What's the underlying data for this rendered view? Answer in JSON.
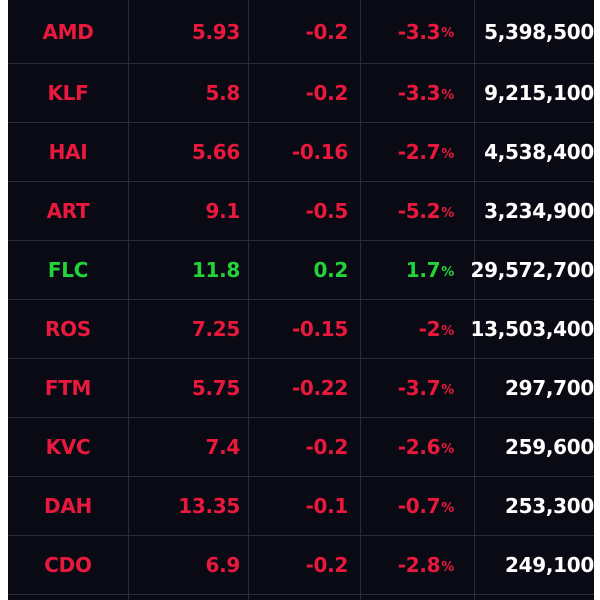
{
  "colors": {
    "down": "#e8193c",
    "up": "#22d43a",
    "volume": "#ffffff",
    "background": "#0a0a14"
  },
  "rows": [
    {
      "symbol": "AMD",
      "price": "5.93",
      "change": "-0.2",
      "percent": "-3.3",
      "pct_sign": "%",
      "volume": "5,398,500",
      "trend": "down"
    },
    {
      "symbol": "KLF",
      "price": "5.8",
      "change": "-0.2",
      "percent": "-3.3",
      "pct_sign": "%",
      "volume": "9,215,100",
      "trend": "down"
    },
    {
      "symbol": "HAI",
      "price": "5.66",
      "change": "-0.16",
      "percent": "-2.7",
      "pct_sign": "%",
      "volume": "4,538,400",
      "trend": "down"
    },
    {
      "symbol": "ART",
      "price": "9.1",
      "change": "-0.5",
      "percent": "-5.2",
      "pct_sign": "%",
      "volume": "3,234,900",
      "trend": "down"
    },
    {
      "symbol": "FLC",
      "price": "11.8",
      "change": "0.2",
      "percent": "1.7",
      "pct_sign": "%",
      "volume": "29,572,700",
      "trend": "up"
    },
    {
      "symbol": "ROS",
      "price": "7.25",
      "change": "-0.15",
      "percent": "-2",
      "pct_sign": "%",
      "volume": "13,503,400",
      "trend": "down"
    },
    {
      "symbol": "FTM",
      "price": "5.75",
      "change": "-0.22",
      "percent": "-3.7",
      "pct_sign": "%",
      "volume": "297,700",
      "trend": "down"
    },
    {
      "symbol": "KVC",
      "price": "7.4",
      "change": "-0.2",
      "percent": "-2.6",
      "pct_sign": "%",
      "volume": "259,600",
      "trend": "down"
    },
    {
      "symbol": "DAH",
      "price": "13.35",
      "change": "-0.1",
      "percent": "-0.7",
      "pct_sign": "%",
      "volume": "253,300",
      "trend": "down"
    },
    {
      "symbol": "CDO",
      "price": "6.9",
      "change": "-0.2",
      "percent": "-2.8",
      "pct_sign": "%",
      "volume": "249,100",
      "trend": "down"
    }
  ]
}
